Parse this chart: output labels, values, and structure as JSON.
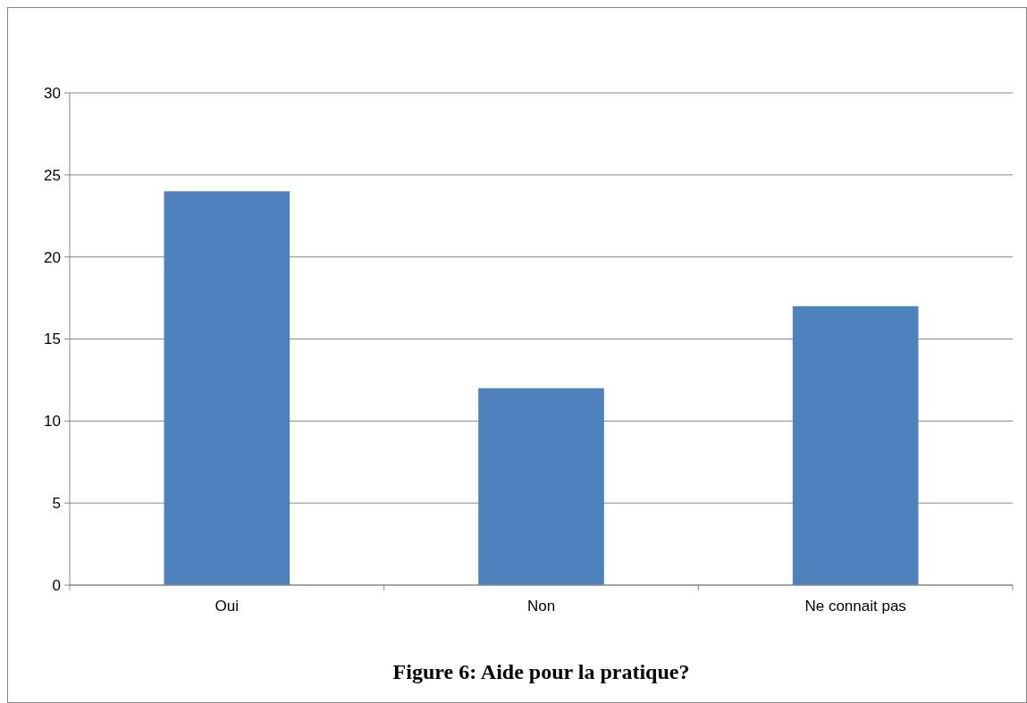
{
  "chart_data": {
    "type": "bar",
    "title": "Figure 6: Aide pour la pratique?",
    "categories": [
      "Oui",
      "Non",
      "Ne connait pas"
    ],
    "values": [
      24,
      12,
      17
    ],
    "color": "#4f81bd",
    "ylim": [
      0,
      30
    ],
    "yticks": [
      0,
      5,
      10,
      15,
      20,
      25,
      30
    ],
    "grid": "y"
  }
}
